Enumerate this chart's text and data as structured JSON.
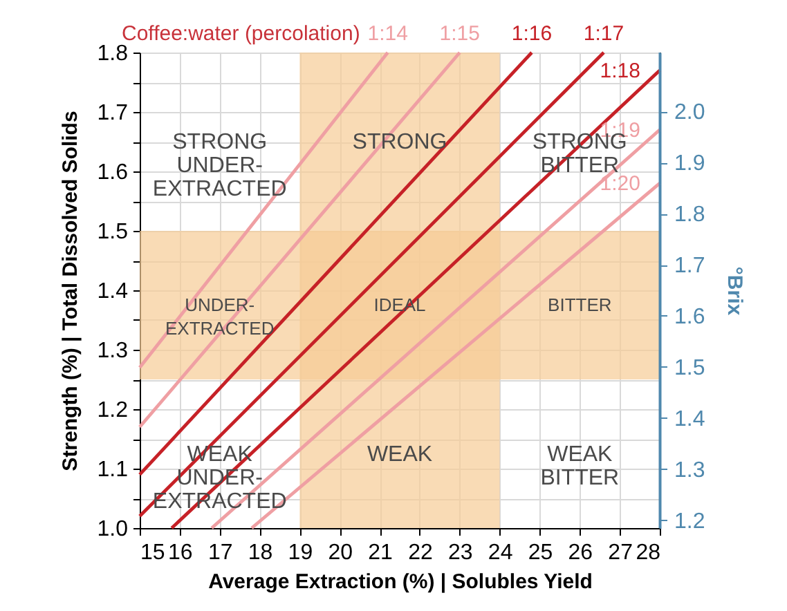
{
  "chart_data": {
    "type": "line",
    "xlabel": "Average Extraction (%) | Solubles Yield",
    "ylabel": "Strength (%) | Total Dissolved Solids",
    "y2label": "°Brix",
    "xlim": [
      15,
      28
    ],
    "ylim": [
      1.0,
      1.8
    ],
    "y2lim": [
      1.185,
      2.115
    ],
    "xticks": [
      15,
      16,
      17,
      18,
      19,
      20,
      21,
      22,
      23,
      24,
      25,
      26,
      27,
      28
    ],
    "yticks": [
      {
        "value": 1,
        "label": "1.0"
      },
      {
        "value": 1.05,
        "label": null
      },
      1.1,
      {
        "value": 1.15,
        "label": null
      },
      1.2,
      {
        "value": 1.25,
        "label": null
      },
      1.3,
      {
        "value": 1.35,
        "label": null
      },
      1.4,
      {
        "value": 1.45,
        "label": null
      },
      1.5,
      {
        "value": 1.55,
        "label": null
      },
      1.6,
      {
        "value": 1.65,
        "label": null
      },
      1.7,
      {
        "value": 1.75,
        "label": null
      },
      1.8
    ],
    "y2ticks": [
      1.2,
      1.3,
      1.4,
      1.5,
      1.6,
      1.7,
      1.8,
      1.9,
      {
        "value": 2,
        "label": "2.0"
      }
    ],
    "grid": true,
    "series": [
      {
        "name": "1:14",
        "color": "#ef9fa3",
        "x": [
          15,
          21.2
        ],
        "values": [
          1.27,
          1.8
        ]
      },
      {
        "name": "1:15",
        "color": "#ef9fa3",
        "x": [
          15,
          23.0
        ],
        "values": [
          1.17,
          1.8
        ]
      },
      {
        "name": "1:16",
        "color": "#c62127",
        "x": [
          15,
          24.8
        ],
        "values": [
          1.09,
          1.8
        ]
      },
      {
        "name": "1:17",
        "color": "#c62127",
        "x": [
          15,
          26.6
        ],
        "values": [
          1.02,
          1.8
        ]
      },
      {
        "name": "1:18",
        "color": "#c62127",
        "x": [
          15.8,
          28
        ],
        "values": [
          1.0,
          1.77
        ]
      },
      {
        "name": "1:19",
        "color": "#ef9fa3",
        "x": [
          16.8,
          28
        ],
        "values": [
          1.0,
          1.67
        ]
      },
      {
        "name": "1:20",
        "color": "#ef9fa3",
        "x": [
          17.8,
          28
        ],
        "values": [
          1.0,
          1.58
        ]
      }
    ],
    "bands": [
      {
        "axis": "x",
        "from": 19,
        "to": 24,
        "color": "#f6cc96"
      },
      {
        "axis": "y",
        "from": 1.25,
        "to": 1.5,
        "color": "#f6cc96"
      }
    ],
    "annotations": [
      "Coffee:water (percolation)",
      "STRONG\nUNDER-\nEXTRACTED",
      "STRONG",
      "STRONG\nBITTER",
      "UNDER-\nEXTRACTED",
      "IDEAL",
      "BITTER",
      "WEAK\nUNDER-\nEXTRACTED",
      "WEAK",
      "WEAK\nBITTER"
    ]
  }
}
